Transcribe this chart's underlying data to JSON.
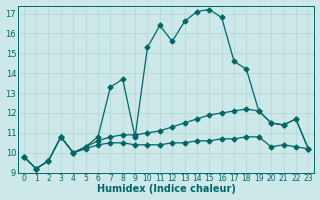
{
  "xlabel": "Humidex (Indice chaleur)",
  "background_color": "#cce8e8",
  "grid_color": "#b8d8d8",
  "line_color": "#006666",
  "xlim": [
    -0.5,
    23.5
  ],
  "ylim": [
    9,
    17.4
  ],
  "xticks": [
    0,
    1,
    2,
    3,
    4,
    5,
    6,
    7,
    8,
    9,
    10,
    11,
    12,
    13,
    14,
    15,
    16,
    17,
    18,
    19,
    20,
    21,
    22,
    23
  ],
  "yticks": [
    9,
    10,
    11,
    12,
    13,
    14,
    15,
    16,
    17
  ],
  "line1_x": [
    0,
    1,
    2,
    3,
    4,
    5,
    6,
    7,
    8,
    9,
    10,
    11,
    12,
    13,
    14,
    15,
    16,
    17,
    18,
    19,
    20,
    21,
    22,
    23
  ],
  "line1_y": [
    9.8,
    9.2,
    9.6,
    10.8,
    10.0,
    10.2,
    10.4,
    10.5,
    10.5,
    10.4,
    10.4,
    10.4,
    10.5,
    10.5,
    10.6,
    10.6,
    10.7,
    10.7,
    10.8,
    10.8,
    10.3,
    10.4,
    10.3,
    10.2
  ],
  "line2_x": [
    0,
    1,
    2,
    3,
    4,
    5,
    6,
    7,
    8,
    9,
    10,
    11,
    12,
    13,
    14,
    15,
    16,
    17,
    18,
    19,
    20,
    21,
    22,
    23
  ],
  "line2_y": [
    9.8,
    9.2,
    9.6,
    10.8,
    10.0,
    10.3,
    10.6,
    10.8,
    10.9,
    10.9,
    11.0,
    11.1,
    11.3,
    11.5,
    11.7,
    11.9,
    12.0,
    12.1,
    12.2,
    12.1,
    11.5,
    11.4,
    11.7,
    10.2
  ],
  "line3_x": [
    0,
    1,
    2,
    3,
    4,
    5,
    6,
    7,
    8,
    9,
    10,
    11,
    12,
    13,
    14,
    15,
    16,
    17,
    18,
    19,
    20,
    21,
    22,
    23
  ],
  "line3_y": [
    9.8,
    9.2,
    9.6,
    10.8,
    10.0,
    10.3,
    10.8,
    13.3,
    13.7,
    10.8,
    15.3,
    16.4,
    15.6,
    16.6,
    17.1,
    17.2,
    16.8,
    14.6,
    14.2,
    12.1,
    11.5,
    11.4,
    11.7,
    10.2
  ]
}
